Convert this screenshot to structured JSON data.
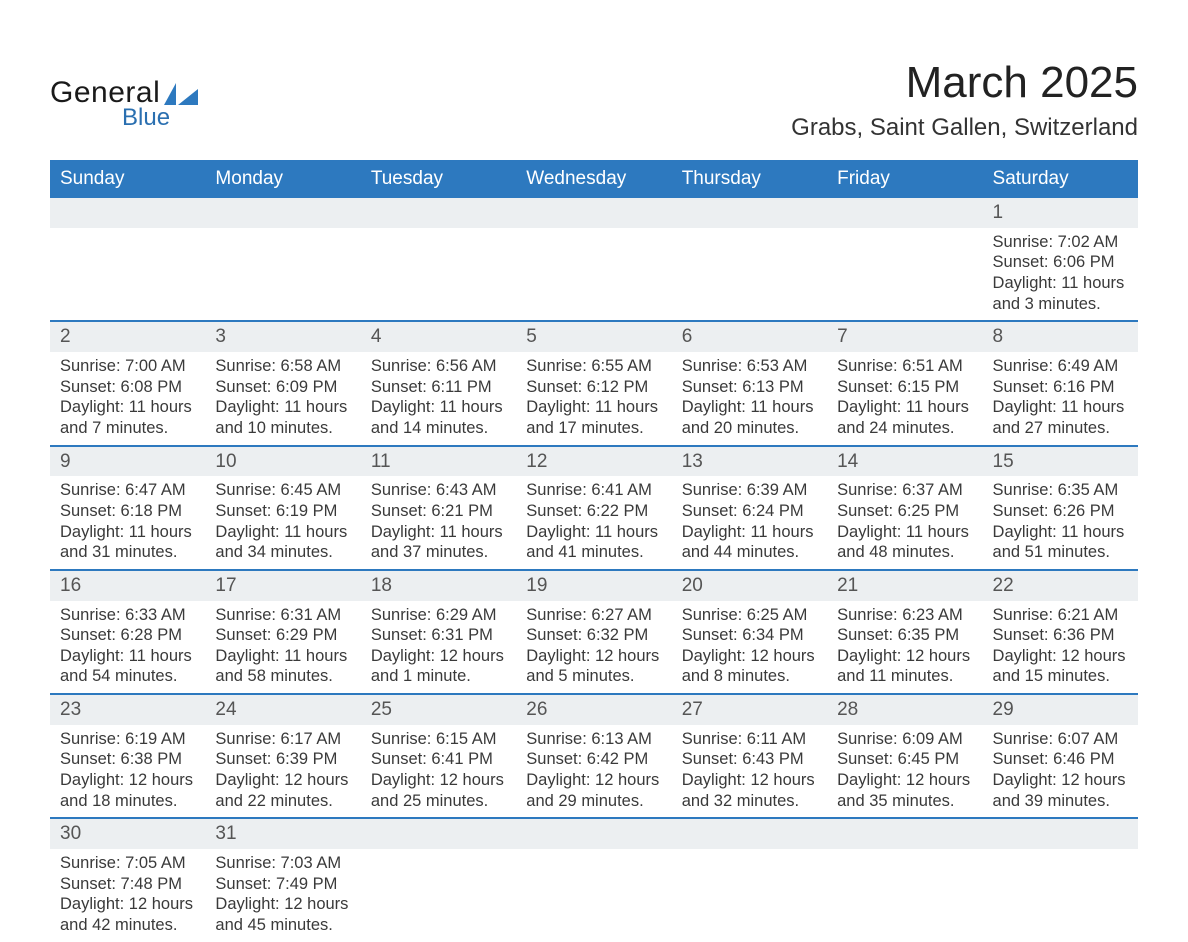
{
  "logo": {
    "text1": "General",
    "text2": "Blue",
    "shape_color": "#2d79bf"
  },
  "header": {
    "title": "March 2025",
    "location": "Grabs, Saint Gallen, Switzerland"
  },
  "colors": {
    "header_bg": "#2d79bf",
    "header_text": "#ffffff",
    "daynum_bg": "#eceff1",
    "row_border": "#2d79bf",
    "body_text": "#3a3a3a",
    "page_bg": "#ffffff"
  },
  "typography": {
    "title_fontsize": 44,
    "location_fontsize": 24,
    "dayheader_fontsize": 19,
    "cell_fontsize": 16.5
  },
  "calendar": {
    "day_headers": [
      "Sunday",
      "Monday",
      "Tuesday",
      "Wednesday",
      "Thursday",
      "Friday",
      "Saturday"
    ],
    "weeks": [
      {
        "nums": [
          "",
          "",
          "",
          "",
          "",
          "",
          "1"
        ],
        "cells": [
          null,
          null,
          null,
          null,
          null,
          null,
          {
            "sunrise": "Sunrise: 7:02 AM",
            "sunset": "Sunset: 6:06 PM",
            "d1": "Daylight: 11 hours",
            "d2": "and 3 minutes."
          }
        ]
      },
      {
        "nums": [
          "2",
          "3",
          "4",
          "5",
          "6",
          "7",
          "8"
        ],
        "cells": [
          {
            "sunrise": "Sunrise: 7:00 AM",
            "sunset": "Sunset: 6:08 PM",
            "d1": "Daylight: 11 hours",
            "d2": "and 7 minutes."
          },
          {
            "sunrise": "Sunrise: 6:58 AM",
            "sunset": "Sunset: 6:09 PM",
            "d1": "Daylight: 11 hours",
            "d2": "and 10 minutes."
          },
          {
            "sunrise": "Sunrise: 6:56 AM",
            "sunset": "Sunset: 6:11 PM",
            "d1": "Daylight: 11 hours",
            "d2": "and 14 minutes."
          },
          {
            "sunrise": "Sunrise: 6:55 AM",
            "sunset": "Sunset: 6:12 PM",
            "d1": "Daylight: 11 hours",
            "d2": "and 17 minutes."
          },
          {
            "sunrise": "Sunrise: 6:53 AM",
            "sunset": "Sunset: 6:13 PM",
            "d1": "Daylight: 11 hours",
            "d2": "and 20 minutes."
          },
          {
            "sunrise": "Sunrise: 6:51 AM",
            "sunset": "Sunset: 6:15 PM",
            "d1": "Daylight: 11 hours",
            "d2": "and 24 minutes."
          },
          {
            "sunrise": "Sunrise: 6:49 AM",
            "sunset": "Sunset: 6:16 PM",
            "d1": "Daylight: 11 hours",
            "d2": "and 27 minutes."
          }
        ]
      },
      {
        "nums": [
          "9",
          "10",
          "11",
          "12",
          "13",
          "14",
          "15"
        ],
        "cells": [
          {
            "sunrise": "Sunrise: 6:47 AM",
            "sunset": "Sunset: 6:18 PM",
            "d1": "Daylight: 11 hours",
            "d2": "and 31 minutes."
          },
          {
            "sunrise": "Sunrise: 6:45 AM",
            "sunset": "Sunset: 6:19 PM",
            "d1": "Daylight: 11 hours",
            "d2": "and 34 minutes."
          },
          {
            "sunrise": "Sunrise: 6:43 AM",
            "sunset": "Sunset: 6:21 PM",
            "d1": "Daylight: 11 hours",
            "d2": "and 37 minutes."
          },
          {
            "sunrise": "Sunrise: 6:41 AM",
            "sunset": "Sunset: 6:22 PM",
            "d1": "Daylight: 11 hours",
            "d2": "and 41 minutes."
          },
          {
            "sunrise": "Sunrise: 6:39 AM",
            "sunset": "Sunset: 6:24 PM",
            "d1": "Daylight: 11 hours",
            "d2": "and 44 minutes."
          },
          {
            "sunrise": "Sunrise: 6:37 AM",
            "sunset": "Sunset: 6:25 PM",
            "d1": "Daylight: 11 hours",
            "d2": "and 48 minutes."
          },
          {
            "sunrise": "Sunrise: 6:35 AM",
            "sunset": "Sunset: 6:26 PM",
            "d1": "Daylight: 11 hours",
            "d2": "and 51 minutes."
          }
        ]
      },
      {
        "nums": [
          "16",
          "17",
          "18",
          "19",
          "20",
          "21",
          "22"
        ],
        "cells": [
          {
            "sunrise": "Sunrise: 6:33 AM",
            "sunset": "Sunset: 6:28 PM",
            "d1": "Daylight: 11 hours",
            "d2": "and 54 minutes."
          },
          {
            "sunrise": "Sunrise: 6:31 AM",
            "sunset": "Sunset: 6:29 PM",
            "d1": "Daylight: 11 hours",
            "d2": "and 58 minutes."
          },
          {
            "sunrise": "Sunrise: 6:29 AM",
            "sunset": "Sunset: 6:31 PM",
            "d1": "Daylight: 12 hours",
            "d2": "and 1 minute."
          },
          {
            "sunrise": "Sunrise: 6:27 AM",
            "sunset": "Sunset: 6:32 PM",
            "d1": "Daylight: 12 hours",
            "d2": "and 5 minutes."
          },
          {
            "sunrise": "Sunrise: 6:25 AM",
            "sunset": "Sunset: 6:34 PM",
            "d1": "Daylight: 12 hours",
            "d2": "and 8 minutes."
          },
          {
            "sunrise": "Sunrise: 6:23 AM",
            "sunset": "Sunset: 6:35 PM",
            "d1": "Daylight: 12 hours",
            "d2": "and 11 minutes."
          },
          {
            "sunrise": "Sunrise: 6:21 AM",
            "sunset": "Sunset: 6:36 PM",
            "d1": "Daylight: 12 hours",
            "d2": "and 15 minutes."
          }
        ]
      },
      {
        "nums": [
          "23",
          "24",
          "25",
          "26",
          "27",
          "28",
          "29"
        ],
        "cells": [
          {
            "sunrise": "Sunrise: 6:19 AM",
            "sunset": "Sunset: 6:38 PM",
            "d1": "Daylight: 12 hours",
            "d2": "and 18 minutes."
          },
          {
            "sunrise": "Sunrise: 6:17 AM",
            "sunset": "Sunset: 6:39 PM",
            "d1": "Daylight: 12 hours",
            "d2": "and 22 minutes."
          },
          {
            "sunrise": "Sunrise: 6:15 AM",
            "sunset": "Sunset: 6:41 PM",
            "d1": "Daylight: 12 hours",
            "d2": "and 25 minutes."
          },
          {
            "sunrise": "Sunrise: 6:13 AM",
            "sunset": "Sunset: 6:42 PM",
            "d1": "Daylight: 12 hours",
            "d2": "and 29 minutes."
          },
          {
            "sunrise": "Sunrise: 6:11 AM",
            "sunset": "Sunset: 6:43 PM",
            "d1": "Daylight: 12 hours",
            "d2": "and 32 minutes."
          },
          {
            "sunrise": "Sunrise: 6:09 AM",
            "sunset": "Sunset: 6:45 PM",
            "d1": "Daylight: 12 hours",
            "d2": "and 35 minutes."
          },
          {
            "sunrise": "Sunrise: 6:07 AM",
            "sunset": "Sunset: 6:46 PM",
            "d1": "Daylight: 12 hours",
            "d2": "and 39 minutes."
          }
        ]
      },
      {
        "nums": [
          "30",
          "31",
          "",
          "",
          "",
          "",
          ""
        ],
        "cells": [
          {
            "sunrise": "Sunrise: 7:05 AM",
            "sunset": "Sunset: 7:48 PM",
            "d1": "Daylight: 12 hours",
            "d2": "and 42 minutes."
          },
          {
            "sunrise": "Sunrise: 7:03 AM",
            "sunset": "Sunset: 7:49 PM",
            "d1": "Daylight: 12 hours",
            "d2": "and 45 minutes."
          },
          null,
          null,
          null,
          null,
          null
        ]
      }
    ]
  }
}
